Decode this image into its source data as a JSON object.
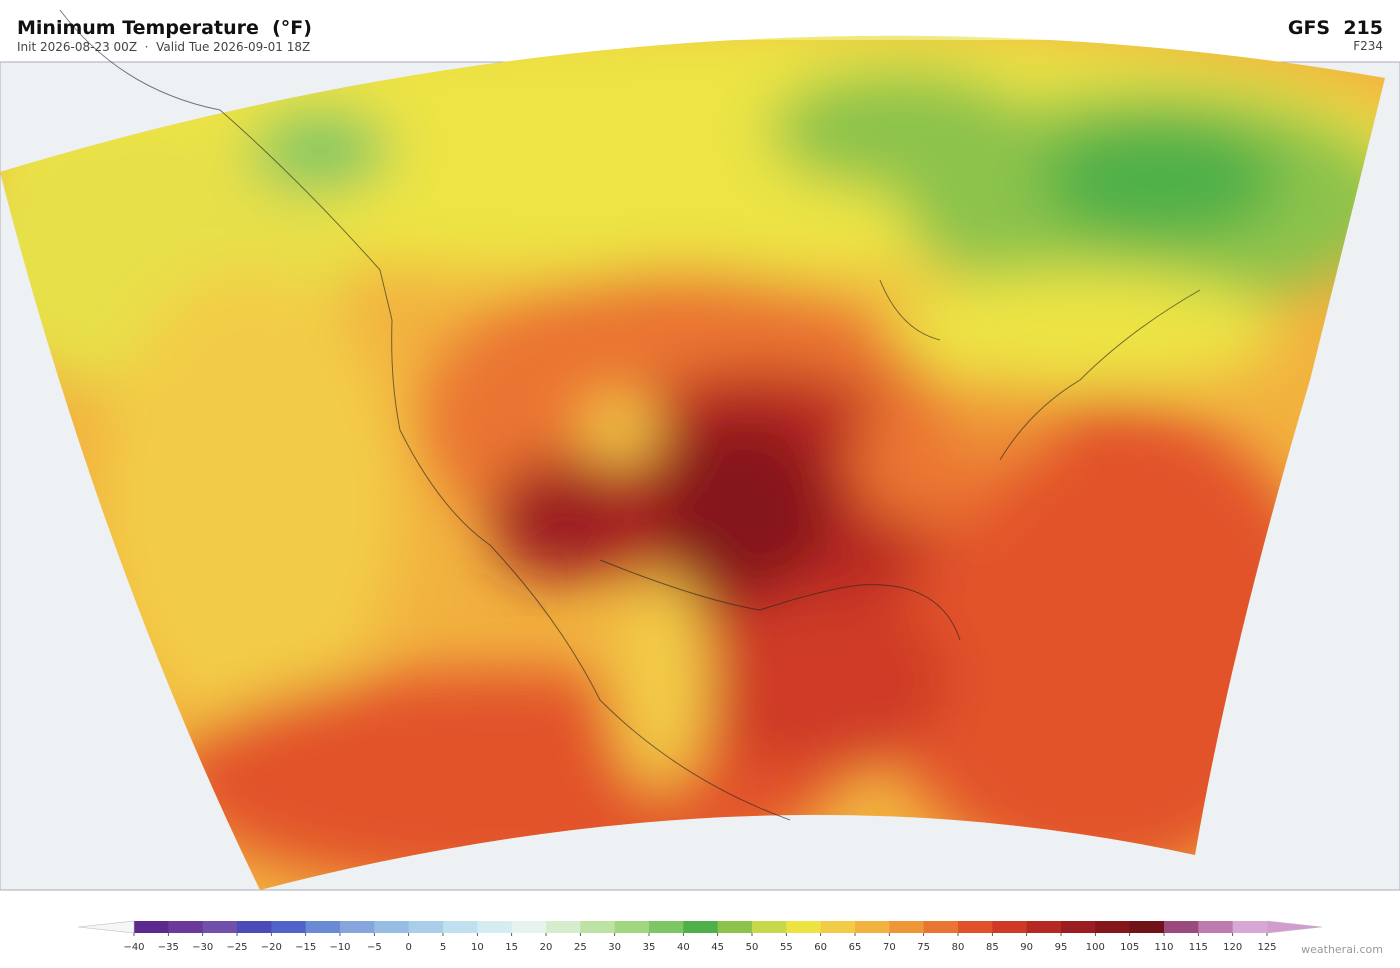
{
  "header": {
    "title": "Minimum Temperature  (°F)",
    "subtitle": "Init 2026-08-23 00Z  ·  Valid Tue 2026-09-01 18Z",
    "model": "GFS  215",
    "forecast_hour": "F234"
  },
  "colorbar": {
    "ticks": [
      {
        "value": -40,
        "label": "−40"
      },
      {
        "value": -35,
        "label": "−35"
      },
      {
        "value": -30,
        "label": "−30"
      },
      {
        "value": -25,
        "label": "−25"
      },
      {
        "value": -20,
        "label": "−20"
      },
      {
        "value": -15,
        "label": "−15"
      },
      {
        "value": -10,
        "label": "−10"
      },
      {
        "value": -5,
        "label": "−5"
      },
      0,
      5,
      10,
      15,
      20,
      25,
      30,
      35,
      40,
      45,
      50,
      55,
      60,
      65,
      70,
      75,
      80,
      85,
      90,
      95,
      100,
      105,
      110,
      115,
      120,
      125
    ],
    "colors": [
      "#5c2a8f",
      "#6a3a9a",
      "#7050a8",
      "#4a4bb8",
      "#4f63c8",
      "#6b8ad4",
      "#84a6dc",
      "#97bde3",
      "#a9cfe8",
      "#bfe0ef",
      "#d5ecf2",
      "#e6f4ee",
      "#d5edcc",
      "#bde3a4",
      "#9fd67f",
      "#7cc664",
      "#4fb04a",
      "#8cc34c",
      "#c5d94a",
      "#ede444",
      "#f3cc47",
      "#f2b23f",
      "#ef9638",
      "#ea7532",
      "#e2522a",
      "#cf3a27",
      "#b72824",
      "#9c1d20",
      "#85161a",
      "#701218",
      "#9a4a7c",
      "#bd7bb0",
      "#d9a7d4"
    ],
    "extend_colors": [
      "#f4f6f8",
      "#d39ccf"
    ]
  },
  "watermark": "weatherai.com"
}
